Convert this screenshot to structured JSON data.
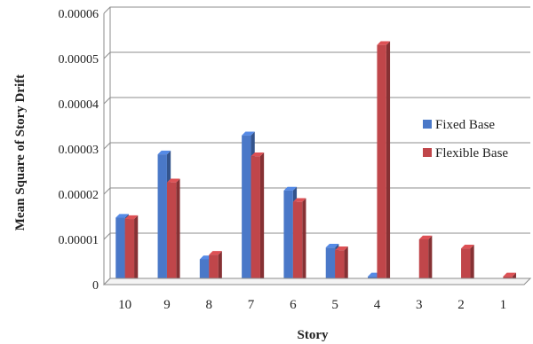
{
  "chart_data": {
    "type": "bar",
    "title": "",
    "xlabel": "Story",
    "ylabel": "Mean Square of Story Drift",
    "categories": [
      "10",
      "9",
      "8",
      "7",
      "6",
      "5",
      "4",
      "3",
      "2",
      "1"
    ],
    "ylim": [
      0,
      6e-05
    ],
    "yticks": [
      "0",
      "0.00001",
      "0.00002",
      "0.00003",
      "0.00004",
      "0.00005",
      "0.00006"
    ],
    "grid": true,
    "legend_position": "right",
    "series": [
      {
        "name": "Fixed Base",
        "color": "#4a78c8",
        "values": [
          1.48e-05,
          2.88e-05,
          5.6e-06,
          3.3e-05,
          2.08e-05,
          8.2e-06,
          1.8e-06,
          2e-07,
          3e-07,
          3e-07
        ]
      },
      {
        "name": "Flexible Base",
        "color": "#c0464a",
        "values": [
          1.45e-05,
          2.26e-05,
          6.6e-06,
          2.84e-05,
          1.83e-05,
          7.6e-06,
          5.3e-05,
          1e-05,
          8e-06,
          1.8e-06
        ]
      }
    ]
  }
}
